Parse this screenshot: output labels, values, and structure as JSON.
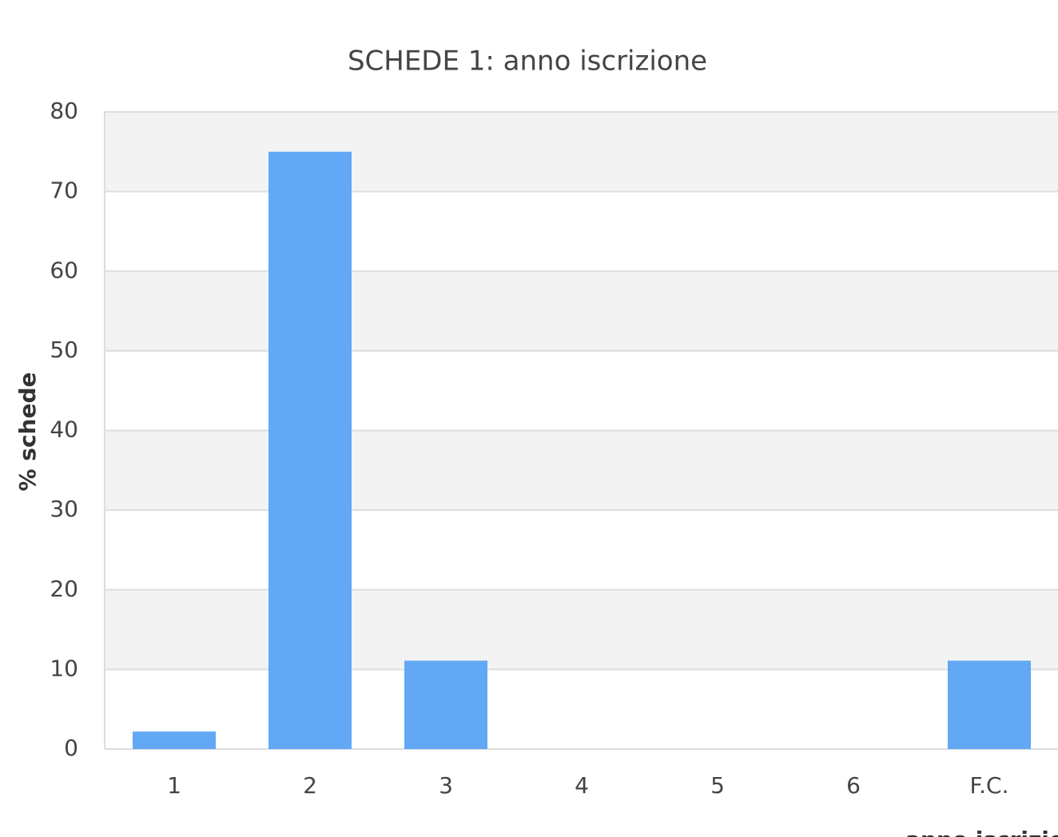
{
  "chart_data": {
    "type": "bar",
    "title": "SCHEDE 1: anno iscrizione",
    "x_label": "anno iscrizione",
    "y_label": "% schede",
    "categories": [
      "1",
      "2",
      "3",
      "4",
      "5",
      "6",
      "F.C."
    ],
    "values": [
      2.2,
      75,
      11.1,
      0,
      0,
      0,
      11.1
    ],
    "color": "#62a8f5",
    "ylim": [
      0,
      80
    ],
    "yticks": [
      0,
      10,
      20,
      30,
      40,
      50,
      60,
      70,
      80
    ],
    "grid": true
  }
}
